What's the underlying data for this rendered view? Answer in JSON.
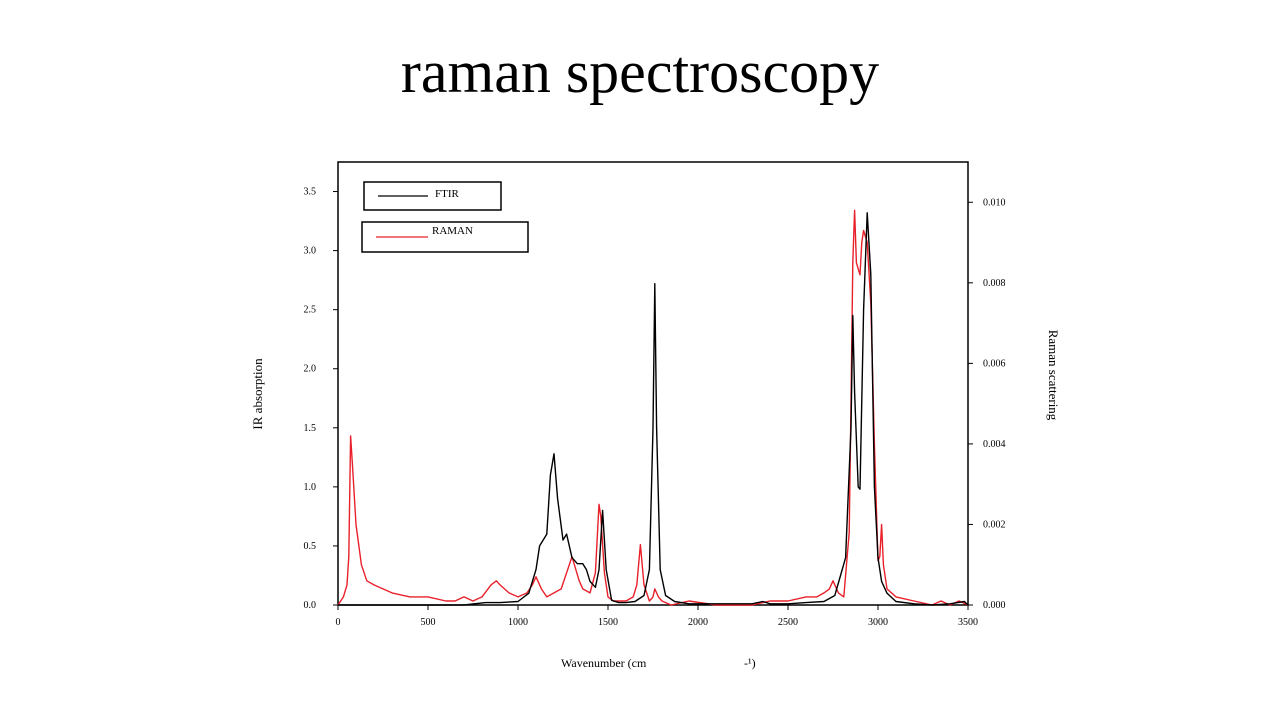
{
  "slide": {
    "title": "raman spectroscopy"
  },
  "chart_data": {
    "type": "line",
    "title": "raman spectroscopy",
    "xlabel": "Wavenumber (cm",
    "xlabel_suffix": "-¹)",
    "ylabel_left": "IR absorption",
    "ylabel_right": "Raman scattering",
    "xlim": [
      0,
      3500
    ],
    "ylim_left": [
      0,
      3.75
    ],
    "ylim_right": [
      0,
      0.011
    ],
    "x_ticks": [
      "0",
      "500",
      "1000",
      "1500",
      "2000",
      "2500",
      "3000",
      "3500"
    ],
    "y_left_ticks": [
      "0.0",
      "0.5",
      "1.0",
      "1.5",
      "2.0",
      "2.5",
      "3.0",
      "3.5"
    ],
    "y_right_ticks": [
      "0.000",
      "0.002",
      "0.004",
      "0.006",
      "0.008",
      "0.010"
    ],
    "grid": false,
    "legend_position": "top-left",
    "series": [
      {
        "name": "FTIR",
        "axis": "left",
        "color": "#000000",
        "x": [
          0,
          700,
          820,
          900,
          1000,
          1060,
          1100,
          1120,
          1140,
          1160,
          1180,
          1200,
          1220,
          1250,
          1270,
          1300,
          1330,
          1360,
          1380,
          1400,
          1430,
          1450,
          1470,
          1490,
          1520,
          1560,
          1600,
          1650,
          1700,
          1730,
          1750,
          1760,
          1770,
          1790,
          1820,
          1870,
          1950,
          2100,
          2300,
          2360,
          2400,
          2500,
          2600,
          2700,
          2760,
          2820,
          2850,
          2860,
          2870,
          2890,
          2900,
          2920,
          2940,
          2960,
          2980,
          3000,
          3020,
          3050,
          3100,
          3200,
          3300,
          3400,
          3480,
          3500
        ],
        "values": [
          0.0,
          0.0,
          0.02,
          0.02,
          0.03,
          0.1,
          0.3,
          0.5,
          0.55,
          0.6,
          1.1,
          1.28,
          0.9,
          0.55,
          0.6,
          0.4,
          0.35,
          0.35,
          0.3,
          0.2,
          0.15,
          0.3,
          0.8,
          0.3,
          0.04,
          0.02,
          0.02,
          0.03,
          0.08,
          0.3,
          1.5,
          2.72,
          1.5,
          0.3,
          0.08,
          0.03,
          0.01,
          0.01,
          0.01,
          0.03,
          0.01,
          0.01,
          0.02,
          0.03,
          0.08,
          0.4,
          1.5,
          2.45,
          1.8,
          1.0,
          0.98,
          2.5,
          3.32,
          2.8,
          1.0,
          0.4,
          0.2,
          0.1,
          0.03,
          0.01,
          0.0,
          0.01,
          0.03,
          0.0
        ]
      },
      {
        "name": "RAMAN",
        "axis": "right",
        "color": "#e8202a",
        "x": [
          0,
          30,
          50,
          60,
          70,
          80,
          100,
          130,
          160,
          200,
          250,
          300,
          400,
          500,
          600,
          650,
          700,
          750,
          800,
          850,
          880,
          900,
          950,
          1000,
          1050,
          1080,
          1100,
          1130,
          1160,
          1200,
          1240,
          1270,
          1300,
          1320,
          1340,
          1360,
          1400,
          1430,
          1450,
          1460,
          1480,
          1500,
          1530,
          1560,
          1600,
          1640,
          1660,
          1680,
          1700,
          1730,
          1750,
          1760,
          1780,
          1800,
          1850,
          1950,
          2100,
          2300,
          2400,
          2500,
          2600,
          2660,
          2700,
          2730,
          2750,
          2780,
          2810,
          2840,
          2850,
          2860,
          2870,
          2880,
          2900,
          2910,
          2920,
          2940,
          2960,
          2980,
          3000,
          3010,
          3020,
          3030,
          3050,
          3100,
          3200,
          3300,
          3350,
          3400,
          3450,
          3500
        ],
        "values": [
          0.0,
          0.0002,
          0.0005,
          0.0012,
          0.0042,
          0.0035,
          0.002,
          0.001,
          0.0006,
          0.0005,
          0.0004,
          0.0003,
          0.0002,
          0.0002,
          0.0001,
          0.0001,
          0.0002,
          0.0001,
          0.0002,
          0.0005,
          0.0006,
          0.0005,
          0.0003,
          0.0002,
          0.0003,
          0.0005,
          0.0007,
          0.0004,
          0.0002,
          0.0003,
          0.0004,
          0.0008,
          0.0012,
          0.0009,
          0.0006,
          0.0004,
          0.0003,
          0.0008,
          0.0025,
          0.0022,
          0.0008,
          0.0002,
          0.0001,
          0.0001,
          0.0001,
          0.0002,
          0.0005,
          0.0015,
          0.0005,
          0.0001,
          0.0002,
          0.0004,
          0.0002,
          0.0001,
          0.0,
          0.0001,
          0.0,
          0.0,
          0.0001,
          0.0001,
          0.0002,
          0.0002,
          0.0003,
          0.0004,
          0.0006,
          0.0003,
          0.0002,
          0.0018,
          0.005,
          0.0085,
          0.0098,
          0.0085,
          0.0082,
          0.009,
          0.0093,
          0.009,
          0.0075,
          0.004,
          0.0011,
          0.0012,
          0.002,
          0.001,
          0.0004,
          0.0002,
          0.0001,
          0.0,
          0.0001,
          0.0,
          0.0001,
          0.0
        ]
      }
    ]
  }
}
